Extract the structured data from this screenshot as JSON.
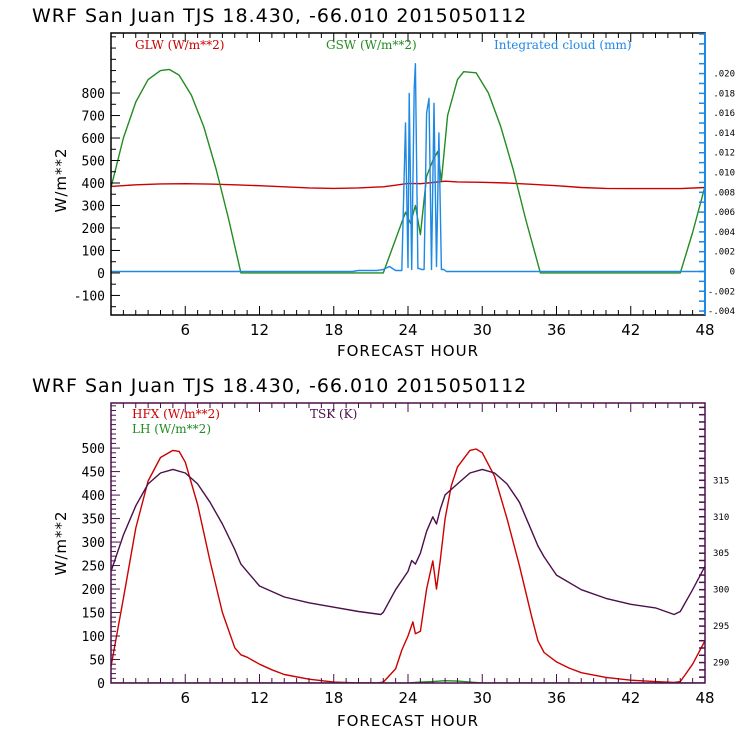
{
  "figure": {
    "title_top": "WRF  San Juan TJS  18.430, -66.010  2015050112",
    "title_bottom": "WRF  San Juan TJS  18.430, -66.010  2015050112"
  },
  "chart_data": [
    {
      "type": "line",
      "title": "WRF  San Juan TJS  18.430, -66.010  2015050112",
      "xlabel": "FORECAST HOUR",
      "ylabel": "W/m**2",
      "y2label": "",
      "xlim": [
        0,
        48
      ],
      "ylim": [
        -187,
        1067
      ],
      "y2lim": [
        -0.0044,
        0.0241
      ],
      "xticks": [
        6,
        12,
        18,
        24,
        30,
        36,
        42,
        48
      ],
      "xtick_labels": [
        "6",
        "12",
        "18",
        "24",
        "30",
        "36",
        "42",
        "48"
      ],
      "yticks": [
        -100,
        0,
        100,
        200,
        300,
        400,
        500,
        600,
        700,
        800
      ],
      "ytick_labels": [
        "-100",
        "0",
        "100",
        "200",
        "300",
        "400",
        "500",
        "600",
        "700",
        "800"
      ],
      "y2ticks": [
        -0.004,
        -0.002,
        0,
        0.002,
        0.004,
        0.006,
        0.008,
        0.01,
        0.012,
        0.014,
        0.016,
        0.018,
        0.02
      ],
      "y2tick_labels": [
        "-.004",
        "-.002",
        "0",
        ".002",
        ".004",
        ".006",
        ".008",
        ".010",
        ".012",
        ".014",
        ".016",
        ".018",
        ".020"
      ],
      "frame_color": "#1e88e5",
      "legend": [
        {
          "label": "GLW (W/m**2)",
          "color": "#cc0000"
        },
        {
          "label": "GSW (W/m**2)",
          "color": "#228b22"
        },
        {
          "label": "Integrated cloud (mm)",
          "color": "#1e88e5"
        }
      ],
      "series": [
        {
          "name": "GLW (W/m**2)",
          "axis": "left",
          "color": "#cc0000",
          "x": [
            0,
            2,
            4,
            6,
            8,
            10,
            12,
            14,
            16,
            18,
            20,
            22,
            23,
            24,
            25,
            26,
            27,
            28,
            30,
            32,
            34,
            36,
            38,
            40,
            42,
            44,
            46,
            48
          ],
          "y": [
            385,
            392,
            396,
            397,
            395,
            392,
            388,
            383,
            378,
            376,
            378,
            383,
            390,
            398,
            397,
            402,
            408,
            405,
            403,
            400,
            394,
            388,
            380,
            376,
            375,
            375,
            375,
            380
          ]
        },
        {
          "name": "GSW (W/m**2)",
          "axis": "left",
          "color": "#228b22",
          "x": [
            0,
            1,
            2,
            3,
            4,
            4.7,
            5.5,
            6.5,
            7.5,
            8.5,
            9.5,
            10.5,
            11,
            21.5,
            22,
            23,
            23.8,
            24.2,
            24.6,
            25,
            25.5,
            26,
            26.4,
            26.7,
            27.2,
            28,
            28.5,
            29.5,
            30.5,
            31.5,
            32.5,
            33.5,
            34.7,
            35,
            45.5,
            46,
            47,
            48
          ],
          "y": [
            380,
            600,
            760,
            860,
            900,
            905,
            880,
            790,
            650,
            460,
            240,
            0,
            0,
            0,
            0,
            150,
            270,
            220,
            300,
            170,
            430,
            500,
            540,
            410,
            700,
            860,
            895,
            890,
            800,
            650,
            460,
            240,
            0,
            0,
            0,
            0,
            180,
            385
          ]
        },
        {
          "name": "Integrated cloud (mm)",
          "axis": "right",
          "color": "#1e88e5",
          "x": [
            0,
            19.5,
            20,
            21.5,
            22,
            22.5,
            23,
            23.5,
            23.8,
            24.0,
            24.1,
            24.3,
            24.5,
            24.6,
            24.8,
            24.9,
            25.1,
            25.3,
            25.5,
            25.7,
            25.9,
            26.1,
            26.3,
            26.5,
            26.7,
            26.9,
            27.1,
            27.4,
            28,
            48
          ],
          "y": [
            0,
            0,
            0.0001,
            0.0001,
            0.0002,
            0.0005,
            0.0001,
            0.0001,
            0.015,
            0.0004,
            0.018,
            0.0002,
            0.0185,
            0.021,
            0.0003,
            0.0003,
            0.0002,
            0.0002,
            0.016,
            0.0175,
            0.0002,
            0.017,
            0.0005,
            0.014,
            0.0002,
            0.0002,
            0.0,
            0.0,
            0,
            0
          ]
        }
      ]
    },
    {
      "type": "line",
      "title": "WRF  San Juan TJS  18.430, -66.010  2015050112",
      "xlabel": "FORECAST HOUR",
      "ylabel": "W/m**2",
      "xlim": [
        0,
        48
      ],
      "ylim": [
        0,
        596
      ],
      "y2lim": [
        287.2,
        325.6
      ],
      "xticks": [
        6,
        12,
        18,
        24,
        30,
        36,
        42,
        48
      ],
      "xtick_labels": [
        "6",
        "12",
        "18",
        "24",
        "30",
        "36",
        "42",
        "48"
      ],
      "yticks": [
        0,
        50,
        100,
        150,
        200,
        250,
        300,
        350,
        400,
        450,
        500
      ],
      "ytick_labels": [
        "0",
        "50",
        "100",
        "150",
        "200",
        "250",
        "300",
        "350",
        "400",
        "450",
        "500"
      ],
      "y2ticks": [
        290,
        295,
        300,
        305,
        310,
        315
      ],
      "y2tick_labels": [
        "290",
        "295",
        "300",
        "305",
        "310",
        "315"
      ],
      "frame_color": "#4b0f4b",
      "legend": [
        {
          "label": "HFX (W/m**2)",
          "color": "#cc0000"
        },
        {
          "label": "LH  (W/m**2)",
          "color": "#228b22"
        },
        {
          "label": "TSK (K)",
          "color": "#4b0f4b"
        }
      ],
      "series": [
        {
          "name": "HFX (W/m**2)",
          "axis": "left",
          "color": "#cc0000",
          "x": [
            0,
            1,
            2,
            3,
            4,
            5,
            5.5,
            6,
            7,
            8,
            9,
            10,
            10.5,
            11,
            12,
            13,
            14,
            16,
            18,
            20,
            21.5,
            22,
            23,
            23.5,
            24,
            24.4,
            24.6,
            25,
            25.5,
            26,
            26.3,
            26.6,
            27,
            27.5,
            28,
            29,
            29.5,
            30,
            31,
            32,
            33,
            34,
            34.5,
            35,
            36,
            37,
            38,
            40,
            42,
            44,
            45.5,
            46,
            47,
            48
          ],
          "y": [
            35,
            180,
            330,
            430,
            480,
            495,
            493,
            470,
            380,
            260,
            150,
            75,
            60,
            55,
            40,
            28,
            18,
            8,
            2,
            0,
            0,
            2,
            30,
            70,
            100,
            130,
            105,
            110,
            200,
            260,
            200,
            260,
            350,
            420,
            460,
            495,
            498,
            490,
            440,
            350,
            250,
            140,
            90,
            65,
            45,
            32,
            22,
            12,
            6,
            3,
            1,
            3,
            40,
            90
          ]
        },
        {
          "name": "LH  (W/m**2)",
          "axis": "left",
          "color": "#228b22",
          "x": [
            0,
            24,
            25,
            26,
            27,
            28,
            29,
            30,
            48
          ],
          "y": [
            0,
            0,
            2,
            3,
            5,
            4,
            2,
            0,
            0
          ]
        },
        {
          "name": "TSK (K)",
          "axis": "right",
          "color": "#4b0f4b",
          "x": [
            0,
            1,
            2,
            3,
            4,
            5,
            6,
            7,
            8,
            9,
            10,
            10.5,
            11,
            12,
            14,
            16,
            18,
            20,
            21.8,
            22,
            23,
            24,
            24.3,
            24.6,
            25,
            25.5,
            26,
            26.3,
            26.6,
            27,
            28,
            29,
            30,
            31,
            32,
            33,
            34,
            34.5,
            35,
            36,
            38,
            40,
            42,
            44,
            45.5,
            46,
            47,
            48
          ],
          "y": [
            302.5,
            307.5,
            311.5,
            314.5,
            316.0,
            316.5,
            316.0,
            314.5,
            312.0,
            309.0,
            305.5,
            303.5,
            302.5,
            300.5,
            299.0,
            298.2,
            297.6,
            297.0,
            296.6,
            296.9,
            300.0,
            302.5,
            304.0,
            303.5,
            305.0,
            308.0,
            310.0,
            309.0,
            311.0,
            313.0,
            314.5,
            316.0,
            316.5,
            316.0,
            314.5,
            312.0,
            308.0,
            306.0,
            304.5,
            302.0,
            300.0,
            298.8,
            298.0,
            297.5,
            296.6,
            297.0,
            300.0,
            303.2
          ]
        }
      ]
    }
  ]
}
